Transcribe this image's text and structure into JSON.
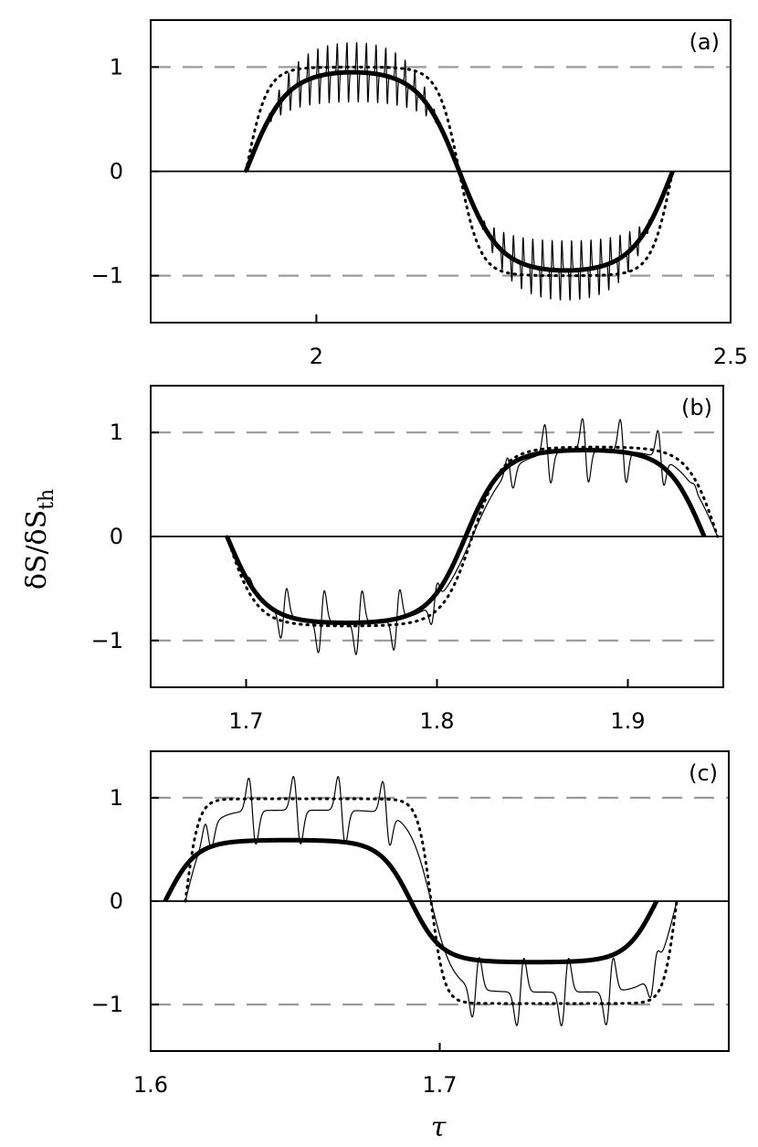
{
  "figure": {
    "ylabel_main": "δS/δS",
    "ylabel_sub": "th",
    "xlabel": "τ"
  },
  "chart_data": [
    {
      "type": "line",
      "panel_label": "(a)",
      "xlim": [
        1.8,
        2.5
      ],
      "ylim": [
        -1.45,
        1.45
      ],
      "x_ticks": [
        2.0,
        2.5
      ],
      "x_tick_labels": [
        "2",
        "2.5"
      ],
      "y_ticks": [
        -1,
        0,
        1
      ],
      "y_tick_labels": [
        "−1",
        "0",
        "1"
      ],
      "dashed_reference_lines": [
        1,
        -1
      ],
      "solid_reference_lines": [
        0
      ],
      "series": [
        {
          "style": "thick",
          "kind": "smooth",
          "x0": 1.915,
          "x1": 2.43,
          "phase": 0,
          "amplitude": 0.95,
          "flat": 1.6
        },
        {
          "style": "dotted",
          "kind": "smooth",
          "x0": 1.915,
          "x1": 2.43,
          "phase": 0.05,
          "amplitude": 1.0,
          "flat": 3.2
        },
        {
          "style": "thin",
          "kind": "oscillating",
          "x0": 1.915,
          "x1": 2.43,
          "phase": 0,
          "amplitude": 0.95,
          "flat": 1.6,
          "spikes": 44,
          "spike_amplitude": 0.42,
          "spike_min": 0.45
        }
      ]
    },
    {
      "type": "line",
      "panel_label": "(b)",
      "xlim": [
        1.65,
        1.95
      ],
      "ylim": [
        -1.45,
        1.45
      ],
      "x_ticks": [
        1.7,
        1.8,
        1.9
      ],
      "x_tick_labels": [
        "1.7",
        "1.8",
        "1.9"
      ],
      "y_ticks": [
        -1,
        0,
        1
      ],
      "y_tick_labels": [
        "−1",
        "0",
        "1"
      ],
      "dashed_reference_lines": [
        1,
        -1
      ],
      "solid_reference_lines": [
        0
      ],
      "series": [
        {
          "style": "thick",
          "kind": "smooth",
          "x0": 1.69,
          "x1": 1.94,
          "phase": 1,
          "amplitude": 0.83,
          "flat": 2.0
        },
        {
          "style": "dotted",
          "kind": "smooth",
          "x0": 1.69,
          "x1": 1.947,
          "phase": 1,
          "amplitude": 0.86,
          "flat": 2.6
        },
        {
          "style": "thin",
          "kind": "oscillating",
          "x0": 1.69,
          "x1": 1.947,
          "phase": 1,
          "amplitude": 0.83,
          "flat": 2.0,
          "spikes": 13,
          "spike_amplitude": 0.45,
          "spike_min": 0.45
        }
      ]
    },
    {
      "type": "line",
      "panel_label": "(c)",
      "xlim": [
        1.6,
        1.8
      ],
      "ylim": [
        -1.45,
        1.45
      ],
      "x_ticks": [
        1.6,
        1.7
      ],
      "x_tick_labels": [
        "1.6",
        "1.7"
      ],
      "y_ticks": [
        -1,
        0,
        1
      ],
      "y_tick_labels": [
        "−1",
        "0",
        "1"
      ],
      "dashed_reference_lines": [
        1,
        -1
      ],
      "solid_reference_lines": [
        0
      ],
      "series": [
        {
          "style": "thick",
          "kind": "smooth",
          "x0": 1.605,
          "x1": 1.775,
          "phase": 0,
          "amplitude": 0.59,
          "flat": 2.5
        },
        {
          "style": "dotted",
          "kind": "smooth",
          "x0": 1.612,
          "x1": 1.782,
          "phase": 0.03,
          "amplitude": 0.99,
          "flat": 6.0
        },
        {
          "style": "thin",
          "kind": "oscillating",
          "x0": 1.612,
          "x1": 1.782,
          "phase": 0.03,
          "amplitude": 0.88,
          "flat": 3.5,
          "spikes": 11,
          "spike_amplitude": 0.48,
          "spike_min": 0.5
        }
      ]
    }
  ]
}
